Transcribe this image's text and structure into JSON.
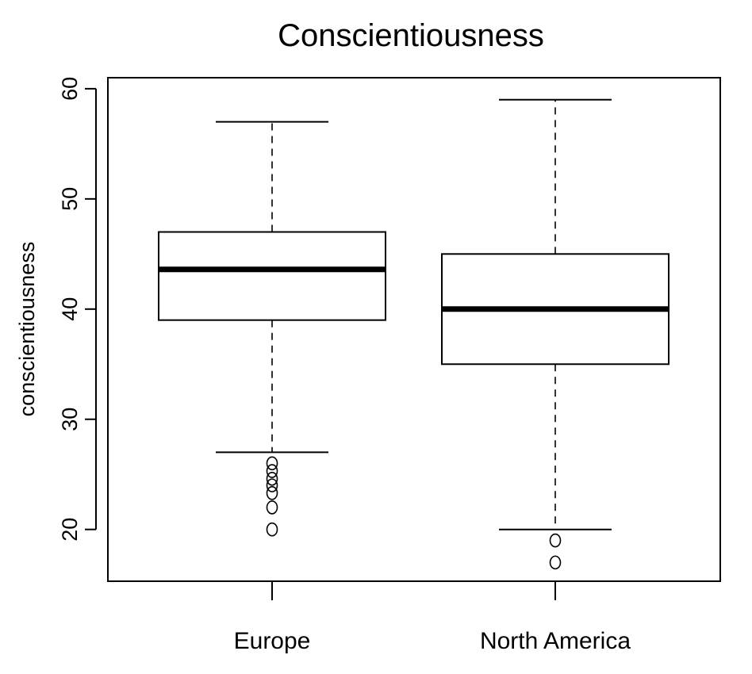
{
  "chart_data": {
    "type": "boxplot",
    "title": "Conscientiousness",
    "xlabel": "",
    "ylabel": "conscientiousness",
    "ylim": [
      15.3,
      61
    ],
    "yticks": [
      "20",
      "30",
      "40",
      "50",
      "60"
    ],
    "categories": [
      "Europe",
      "North America"
    ],
    "boxes": [
      {
        "category": "Europe",
        "whisker_low": 27,
        "q1": 39,
        "median": 43.6,
        "q3": 47,
        "whisker_high": 57,
        "outliers": [
          26,
          25.3,
          24.6,
          24,
          23.3,
          22,
          20
        ]
      },
      {
        "category": "North America",
        "whisker_low": 20,
        "q1": 35,
        "median": 40,
        "q3": 45,
        "whisker_high": 59,
        "outliers": [
          19,
          17
        ]
      }
    ],
    "grid": false,
    "legend": "none"
  }
}
